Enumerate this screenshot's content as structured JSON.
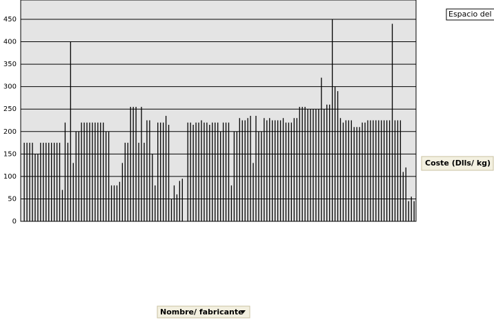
{
  "chart_data": {
    "type": "bar",
    "series": [
      {
        "name": "Coste (Dlls/ kg)",
        "color": "#000000",
        "values": [
          175,
          175,
          175,
          175,
          150,
          150,
          175,
          175,
          175,
          175,
          175,
          175,
          175,
          175,
          70,
          220,
          175,
          400,
          130,
          200,
          200,
          220,
          220,
          220,
          220,
          220,
          220,
          220,
          220,
          220,
          200,
          200,
          80,
          80,
          80,
          88,
          130,
          175,
          175,
          255,
          255,
          255,
          175,
          255,
          175,
          225,
          225,
          150,
          80,
          220,
          220,
          220,
          235,
          215,
          50,
          80,
          60,
          90,
          95,
          0,
          220,
          220,
          215,
          220,
          220,
          225,
          220,
          220,
          215,
          220,
          220,
          220,
          200,
          220,
          220,
          220,
          80,
          200,
          200,
          230,
          225,
          225,
          230,
          235,
          130,
          235,
          200,
          200,
          230,
          225,
          230,
          225,
          225,
          225,
          225,
          230,
          220,
          220,
          220,
          230,
          230,
          255,
          255,
          255,
          250,
          250,
          250,
          250,
          250,
          320,
          250,
          260,
          260,
          450,
          300,
          290,
          230,
          220,
          225,
          225,
          225,
          210,
          210,
          210,
          220,
          220,
          225,
          225,
          225,
          225,
          225,
          225,
          225,
          225,
          225,
          440,
          225,
          225,
          225,
          110,
          120,
          45,
          55,
          45
        ]
      }
    ],
    "categories": [
      null,
      null,
      null,
      null,
      null,
      null,
      null,
      null,
      null,
      null,
      null,
      null,
      null,
      null,
      null,
      null,
      null,
      null,
      null,
      null,
      null,
      null,
      null,
      null,
      null,
      null,
      null,
      null,
      null,
      null,
      null,
      null,
      null,
      null,
      null,
      null,
      null,
      null,
      null,
      null,
      null,
      null,
      null,
      null,
      null,
      null,
      null,
      null,
      null,
      null,
      null,
      null,
      null,
      null,
      null,
      null,
      null,
      null,
      null,
      null,
      null,
      null,
      null,
      null,
      null,
      null,
      null,
      null,
      null,
      null,
      null,
      null,
      null,
      null,
      null,
      null,
      null,
      null,
      null,
      null,
      null,
      null,
      null,
      null,
      null,
      null,
      null,
      null,
      null,
      null,
      null,
      null,
      null,
      null,
      null,
      null,
      null,
      null,
      null,
      null,
      null,
      null,
      null,
      null,
      null,
      null,
      null,
      null,
      null,
      null,
      null,
      null,
      null,
      null,
      null,
      null,
      null,
      null,
      null,
      null,
      null,
      null,
      null,
      null,
      null,
      null,
      null,
      null,
      null,
      null,
      null,
      null,
      null,
      null,
      null,
      null,
      null,
      null,
      null,
      null,
      null,
      null,
      null,
      null
    ],
    "x_label": "Nombre/ fabricante",
    "drop_zone": "Espacio del gr",
    "ylim": [
      0,
      493
    ],
    "yticks": [
      0,
      50,
      100,
      150,
      200,
      250,
      300,
      350,
      400,
      450
    ],
    "grid": true,
    "legend": "right"
  }
}
